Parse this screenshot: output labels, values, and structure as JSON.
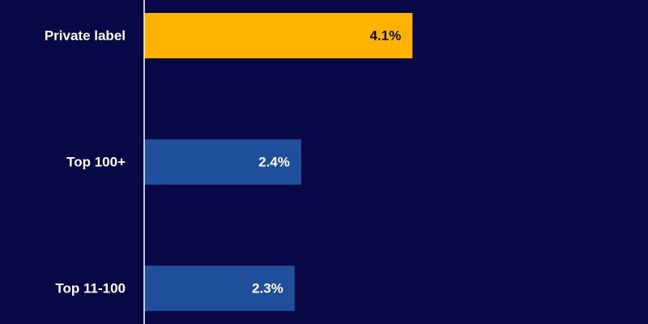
{
  "chart_data": {
    "type": "hbar",
    "categories": [
      "Private label",
      "Top 100+",
      "Top 11-100"
    ],
    "values": [
      4.1,
      2.4,
      2.3
    ],
    "value_labels": [
      "4.1%",
      "2.4%",
      "2.3%"
    ],
    "colors": [
      "#ffb300",
      "#1f4e9a",
      "#1f4e9a"
    ],
    "xlim": [
      0,
      7.7
    ]
  }
}
